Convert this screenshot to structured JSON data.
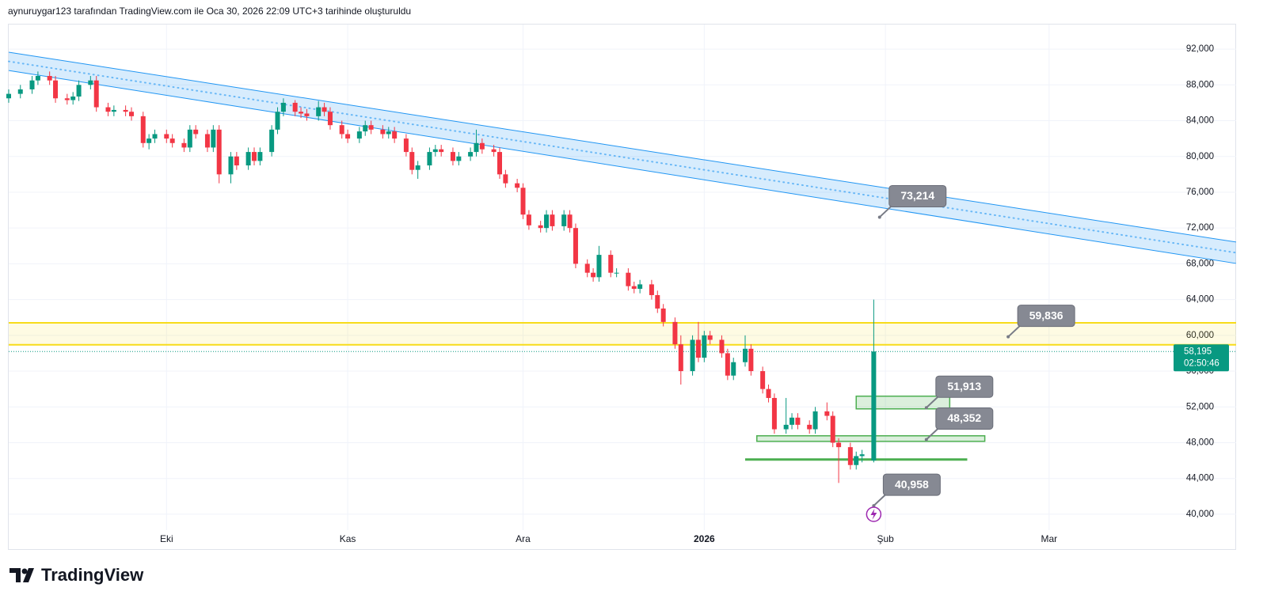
{
  "caption": "aynuruygar123 tarafından TradingView.com ile Oca 30, 2026 22:09 UTC+3 tarihinde oluşturuldu",
  "logo": "TradingView",
  "chart_data": {
    "type": "candlestick",
    "colors": {
      "up": "#089981",
      "down": "#f23645"
    },
    "x": [
      -27,
      -25,
      -23,
      -22,
      -20,
      -19,
      -17,
      -16,
      -15,
      -13,
      -12,
      -10,
      -9,
      -7,
      -6,
      -4,
      -3,
      -2,
      0,
      1,
      3,
      4,
      5,
      7,
      8,
      9,
      11,
      12,
      14,
      15,
      16,
      18,
      19,
      20,
      22,
      23,
      24,
      26,
      27,
      28,
      30,
      31,
      33,
      34,
      35,
      37,
      38,
      39,
      41,
      42,
      43,
      45,
      46,
      47,
      49,
      50,
      52,
      53,
      54,
      56,
      57,
      58,
      60,
      61,
      62,
      64,
      65,
      66,
      68,
      69,
      70,
      72,
      73,
      74,
      76,
      77,
      79,
      80,
      81,
      83,
      84,
      85,
      87,
      88,
      90,
      91,
      92,
      93,
      95,
      96,
      97,
      99,
      100,
      102,
      103,
      104,
      106,
      107,
      108,
      110,
      111,
      113,
      114,
      115,
      117,
      118,
      119,
      121
    ],
    "open": [
      86500,
      87000,
      87500,
      88500,
      89000,
      88500,
      86500,
      86300,
      86700,
      88000,
      88500,
      85500,
      85000,
      85200,
      85000,
      84500,
      81500,
      82000,
      82500,
      82000,
      81500,
      81000,
      83000,
      82500,
      81000,
      83000,
      78000,
      80000,
      79000,
      80500,
      79500,
      80500,
      83000,
      85000,
      86000,
      85000,
      84800,
      84500,
      85500,
      85000,
      83500,
      82500,
      82000,
      82800,
      83500,
      83000,
      82500,
      82800,
      82000,
      80500,
      78500,
      79000,
      80500,
      80800,
      80500,
      79500,
      80000,
      80500,
      81500,
      80800,
      80500,
      78000,
      77000,
      76500,
      73500,
      72300,
      72000,
      73500,
      72200,
      73500,
      72000,
      68000,
      67000,
      66500,
      69000,
      67000,
      67000,
      65500,
      65200,
      65700,
      64500,
      63000,
      61500,
      59000,
      56000,
      59500,
      57500,
      60000,
      59500,
      58000,
      55500,
      57000,
      58500,
      56000,
      54000,
      53000,
      49500,
      50000,
      50800,
      50000,
      49500,
      51500,
      51000,
      48000,
      47500,
      45500,
      46500,
      46000
    ],
    "high": [
      87500,
      88000,
      89000,
      89500,
      89500,
      89000,
      87000,
      87200,
      88500,
      89000,
      89000,
      86000,
      85700,
      85700,
      85500,
      85000,
      82500,
      83000,
      83000,
      82500,
      82000,
      83500,
      83500,
      83000,
      83500,
      83500,
      80500,
      80500,
      81000,
      81000,
      81000,
      83500,
      85500,
      86500,
      86300,
      85500,
      85300,
      86200,
      86000,
      85500,
      84000,
      83000,
      83300,
      84000,
      84000,
      83500,
      83300,
      83300,
      82500,
      81000,
      79500,
      81000,
      81300,
      81300,
      81000,
      80500,
      81000,
      83000,
      82000,
      81300,
      81000,
      78500,
      77500,
      77000,
      74000,
      72800,
      74000,
      74000,
      74000,
      74000,
      72500,
      68500,
      67500,
      70000,
      69500,
      67500,
      67500,
      66000,
      66200,
      66200,
      65000,
      63500,
      62000,
      60000,
      60000,
      61500,
      60500,
      60500,
      60000,
      58500,
      57500,
      60000,
      59000,
      56500,
      54500,
      53500,
      53000,
      51300,
      51300,
      50500,
      52000,
      52500,
      51500,
      48500,
      48000,
      47000,
      47200,
      64000
    ],
    "low": [
      86000,
      86500,
      87000,
      88000,
      88000,
      86000,
      85800,
      85800,
      86200,
      87500,
      85000,
      84500,
      84500,
      84500,
      84000,
      81000,
      80800,
      81500,
      81500,
      81000,
      80500,
      80500,
      82000,
      80500,
      80500,
      77000,
      77000,
      78500,
      78500,
      79000,
      79000,
      80000,
      82500,
      84500,
      84500,
      84300,
      84000,
      84000,
      84500,
      83000,
      82000,
      81500,
      81500,
      82300,
      82500,
      82000,
      82000,
      81500,
      80000,
      78000,
      77500,
      78500,
      80000,
      80000,
      79000,
      79000,
      79500,
      80000,
      80300,
      80000,
      77500,
      76500,
      76000,
      73000,
      71800,
      71500,
      71500,
      71700,
      71700,
      71500,
      67500,
      66500,
      66000,
      66000,
      66500,
      66500,
      65000,
      64700,
      64700,
      64000,
      62500,
      61000,
      58500,
      54500,
      55500,
      57000,
      57000,
      59000,
      57500,
      55000,
      55000,
      56500,
      55500,
      53500,
      52500,
      49000,
      49000,
      49500,
      49500,
      49000,
      49000,
      50500,
      47500,
      43500,
      45000,
      45000,
      45800,
      45800
    ],
    "close": [
      87000,
      87500,
      88500,
      89000,
      88500,
      86500,
      86300,
      86700,
      88000,
      88500,
      85500,
      85000,
      85200,
      85000,
      84500,
      81500,
      82000,
      82500,
      82000,
      81500,
      81000,
      83000,
      82500,
      81000,
      83000,
      78000,
      80000,
      79000,
      80500,
      79500,
      80500,
      83000,
      85000,
      86000,
      85000,
      84800,
      84500,
      85500,
      85000,
      83500,
      82500,
      82000,
      82800,
      83500,
      83000,
      82500,
      82800,
      82000,
      80500,
      78500,
      79000,
      80500,
      80800,
      80500,
      79500,
      80000,
      80500,
      81500,
      80800,
      80500,
      78000,
      77000,
      76500,
      73500,
      72300,
      72000,
      73500,
      72200,
      73500,
      72000,
      68000,
      67000,
      66500,
      69000,
      67000,
      67000,
      65500,
      65200,
      65700,
      64500,
      63000,
      61500,
      59000,
      56000,
      59500,
      57500,
      60000,
      59500,
      58000,
      55500,
      57000,
      58500,
      56000,
      54000,
      53000,
      49500,
      50000,
      50800,
      50000,
      49500,
      51500,
      51000,
      48000,
      47500,
      45500,
      46500,
      46700,
      58195
    ],
    "xlim": [
      -27,
      183
    ],
    "xticks": [
      {
        "value": 0,
        "label": "Eki"
      },
      {
        "value": 31,
        "label": "Kas"
      },
      {
        "value": 61,
        "label": "Ara"
      },
      {
        "value": 92,
        "label": "2026"
      },
      {
        "value": 123,
        "label": "Şub"
      },
      {
        "value": 151,
        "label": "Mar"
      }
    ],
    "ylim": [
      36100,
      94750
    ],
    "yticks": [
      {
        "value": 40000,
        "label": "40,000"
      },
      {
        "value": 44000,
        "label": "44,000"
      },
      {
        "value": 48000,
        "label": "48,000"
      },
      {
        "value": 52000,
        "label": "52,000"
      },
      {
        "value": 56000,
        "label": "56,000"
      },
      {
        "value": 60000,
        "label": "60,000"
      },
      {
        "value": 64000,
        "label": "64,000"
      },
      {
        "value": 68000,
        "label": "68,000"
      },
      {
        "value": 72000,
        "label": "72,000"
      },
      {
        "value": 76000,
        "label": "76,000"
      },
      {
        "value": 80000,
        "label": "80,000"
      },
      {
        "value": 84000,
        "label": "84,000"
      },
      {
        "value": 88000,
        "label": "88,000"
      },
      {
        "value": 92000,
        "label": "92,000"
      }
    ],
    "grid": true,
    "last_price": {
      "value": 58195,
      "label": "58,195",
      "countdown": "02:50:46"
    },
    "channel": {
      "x": [
        -27,
        183
      ],
      "upper": [
        91650,
        70430
      ],
      "lower": [
        89610,
        68040
      ],
      "color": "#2196f3"
    },
    "band": {
      "values": [
        61400,
        58940
      ],
      "color": "#f7dc1a"
    },
    "zones": [
      {
        "x": [
          118,
          134
        ],
        "y": [
          51780,
          53200
        ]
      },
      {
        "x": [
          101,
          140
        ],
        "y": [
          48150,
          48770
        ]
      }
    ],
    "support": {
      "x": [
        99,
        137
      ],
      "value": 46120
    },
    "price_labels": [
      {
        "x": 122,
        "value": 73214,
        "label": "73,214"
      },
      {
        "x": 144,
        "value": 59836,
        "label": "59,836"
      },
      {
        "x": 130,
        "value": 51913,
        "label": "51,913"
      },
      {
        "x": 130,
        "value": 48352,
        "label": "48,352"
      },
      {
        "x": 121,
        "value": 40958,
        "label": "40,958"
      }
    ]
  }
}
